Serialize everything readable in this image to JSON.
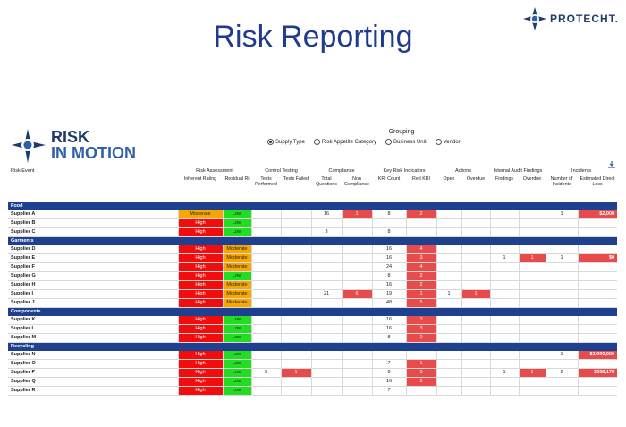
{
  "slide_title": "Risk Reporting",
  "brand": {
    "name": "PROTECHT."
  },
  "app_logo": {
    "line1": "RISK",
    "line2": "IN MOTION"
  },
  "grouping": {
    "title": "Grouping",
    "options": [
      {
        "label": "Supply Type",
        "selected": true
      },
      {
        "label": "Risk Appetite Category",
        "selected": false
      },
      {
        "label": "Business Unit",
        "selected": false
      },
      {
        "label": "Vendor",
        "selected": false
      }
    ]
  },
  "header": {
    "risk_event": "Risk Event",
    "groups": {
      "risk_assessment": "Risk Assessment",
      "control_testing": "Control Testing",
      "compliance": "Compliance",
      "kri": "Key Risk Indicators",
      "actions": "Actions",
      "internal_audit": "Internal Audit Findings",
      "incidents": "Incidents"
    },
    "columns": {
      "inherent": "Inherent Rating",
      "residual": "Residual Ri",
      "tests_performed": "Tests Performed",
      "tests_failed": "Tests Failed",
      "total_questions": "Total Questions",
      "non_compliance": "Non Compliance",
      "kri_count": "KRI Count",
      "red_kri": "Red KRI",
      "open": "Open",
      "overdue": "Overdue",
      "findings": "Findings",
      "audit_overdue": "Overdue",
      "num_incidents": "Number of Incidents",
      "direct_loss": "Estimated Direct Loss"
    }
  },
  "categories": [
    {
      "name": "Food",
      "rows": [
        {
          "name": "Supplier A",
          "inherent": "Moderate",
          "residual": "Low",
          "tp": "",
          "tf": "",
          "tq": "16",
          "nc": "1",
          "kri": "8",
          "red": "2",
          "open": "",
          "overdue": "",
          "findings": "",
          "aoverdue": "",
          "inc": "1",
          "loss": "$2,000"
        },
        {
          "name": "Supplier B",
          "inherent": "High",
          "residual": "Low",
          "tp": "",
          "tf": "",
          "tq": "",
          "nc": "",
          "kri": "",
          "red": "",
          "open": "",
          "overdue": "",
          "findings": "",
          "aoverdue": "",
          "inc": "",
          "loss": ""
        },
        {
          "name": "Supplier C",
          "inherent": "High",
          "residual": "Low",
          "tp": "",
          "tf": "",
          "tq": "3",
          "nc": "",
          "kri": "8",
          "red": "",
          "open": "",
          "overdue": "",
          "findings": "",
          "aoverdue": "",
          "inc": "",
          "loss": ""
        }
      ]
    },
    {
      "name": "Garments",
      "rows": [
        {
          "name": "Supplier D",
          "inherent": "High",
          "residual": "Moderate",
          "tp": "",
          "tf": "",
          "tq": "",
          "nc": "",
          "kri": "16",
          "red": "4",
          "open": "",
          "overdue": "",
          "findings": "",
          "aoverdue": "",
          "inc": "",
          "loss": ""
        },
        {
          "name": "Supplier E",
          "inherent": "High",
          "residual": "Moderate",
          "tp": "",
          "tf": "",
          "tq": "",
          "nc": "",
          "kri": "16",
          "red": "3",
          "open": "",
          "overdue": "",
          "findings": "1",
          "aoverdue": "1",
          "inc": "1",
          "loss": "$0"
        },
        {
          "name": "Supplier F",
          "inherent": "High",
          "residual": "Moderate",
          "tp": "",
          "tf": "",
          "tq": "",
          "nc": "",
          "kri": "24",
          "red": "4",
          "open": "",
          "overdue": "",
          "findings": "",
          "aoverdue": "",
          "inc": "",
          "loss": ""
        },
        {
          "name": "Supplier G",
          "inherent": "High",
          "residual": "Low",
          "tp": "",
          "tf": "",
          "tq": "",
          "nc": "",
          "kri": "8",
          "red": "2",
          "open": "",
          "overdue": "",
          "findings": "",
          "aoverdue": "",
          "inc": "",
          "loss": ""
        },
        {
          "name": "Supplier H",
          "inherent": "High",
          "residual": "Moderate",
          "tp": "",
          "tf": "",
          "tq": "",
          "nc": "",
          "kri": "16",
          "red": "2",
          "open": "",
          "overdue": "",
          "findings": "",
          "aoverdue": "",
          "inc": "",
          "loss": ""
        },
        {
          "name": "Supplier I",
          "inherent": "High",
          "residual": "Moderate",
          "tp": "",
          "tf": "",
          "tq": "21",
          "nc": "6",
          "kri": "19",
          "red": "1",
          "open": "1",
          "overdue": "1",
          "findings": "",
          "aoverdue": "",
          "inc": "",
          "loss": ""
        },
        {
          "name": "Supplier J",
          "inherent": "High",
          "residual": "Moderate",
          "tp": "",
          "tf": "",
          "tq": "",
          "nc": "",
          "kri": "48",
          "red": "5",
          "open": "",
          "overdue": "",
          "findings": "",
          "aoverdue": "",
          "inc": "",
          "loss": ""
        }
      ]
    },
    {
      "name": "Components",
      "rows": [
        {
          "name": "Supplier K",
          "inherent": "High",
          "residual": "Low",
          "tp": "",
          "tf": "",
          "tq": "",
          "nc": "",
          "kri": "16",
          "red": "3",
          "open": "",
          "overdue": "",
          "findings": "",
          "aoverdue": "",
          "inc": "",
          "loss": ""
        },
        {
          "name": "Supplier L",
          "inherent": "High",
          "residual": "Low",
          "tp": "",
          "tf": "",
          "tq": "",
          "nc": "",
          "kri": "16",
          "red": "3",
          "open": "",
          "overdue": "",
          "findings": "",
          "aoverdue": "",
          "inc": "",
          "loss": ""
        },
        {
          "name": "Supplier M",
          "inherent": "High",
          "residual": "Low",
          "tp": "",
          "tf": "",
          "tq": "",
          "nc": "",
          "kri": "8",
          "red": "2",
          "open": "",
          "overdue": "",
          "findings": "",
          "aoverdue": "",
          "inc": "",
          "loss": ""
        }
      ]
    },
    {
      "name": "Recycling",
      "rows": [
        {
          "name": "Supplier N",
          "inherent": "High",
          "residual": "Low",
          "tp": "",
          "tf": "",
          "tq": "",
          "nc": "",
          "kri": "",
          "red": "",
          "open": "",
          "overdue": "",
          "findings": "",
          "aoverdue": "",
          "inc": "1",
          "loss": "$1,000,000"
        },
        {
          "name": "Supplier O",
          "inherent": "High",
          "residual": "Low",
          "tp": "",
          "tf": "",
          "tq": "",
          "nc": "",
          "kri": "7",
          "red": "1",
          "open": "",
          "overdue": "",
          "findings": "",
          "aoverdue": "",
          "inc": "",
          "loss": ""
        },
        {
          "name": "Supplier P",
          "inherent": "High",
          "residual": "Low",
          "tp": "3",
          "tf": "1",
          "tq": "",
          "nc": "",
          "kri": "8",
          "red": "3",
          "open": "",
          "overdue": "",
          "findings": "1",
          "aoverdue": "1",
          "inc": "2",
          "loss": "$558,178"
        },
        {
          "name": "Supplier Q",
          "inherent": "High",
          "residual": "Low",
          "tp": "",
          "tf": "",
          "tq": "",
          "nc": "",
          "kri": "16",
          "red": "2",
          "open": "",
          "overdue": "",
          "findings": "",
          "aoverdue": "",
          "inc": "",
          "loss": ""
        },
        {
          "name": "Supplier R",
          "inherent": "High",
          "residual": "Low",
          "tp": "",
          "tf": "",
          "tq": "",
          "nc": "",
          "kri": "7",
          "red": "",
          "open": "",
          "overdue": "",
          "findings": "",
          "aoverdue": "",
          "inc": "",
          "loss": ""
        }
      ]
    }
  ],
  "colors": {
    "title": "#1f3a8f",
    "category_bar": "#1f3f8f",
    "high": "#f20d0d",
    "moderate": "#f7a800",
    "low": "#22dd22",
    "flag": "#e84b4b"
  }
}
